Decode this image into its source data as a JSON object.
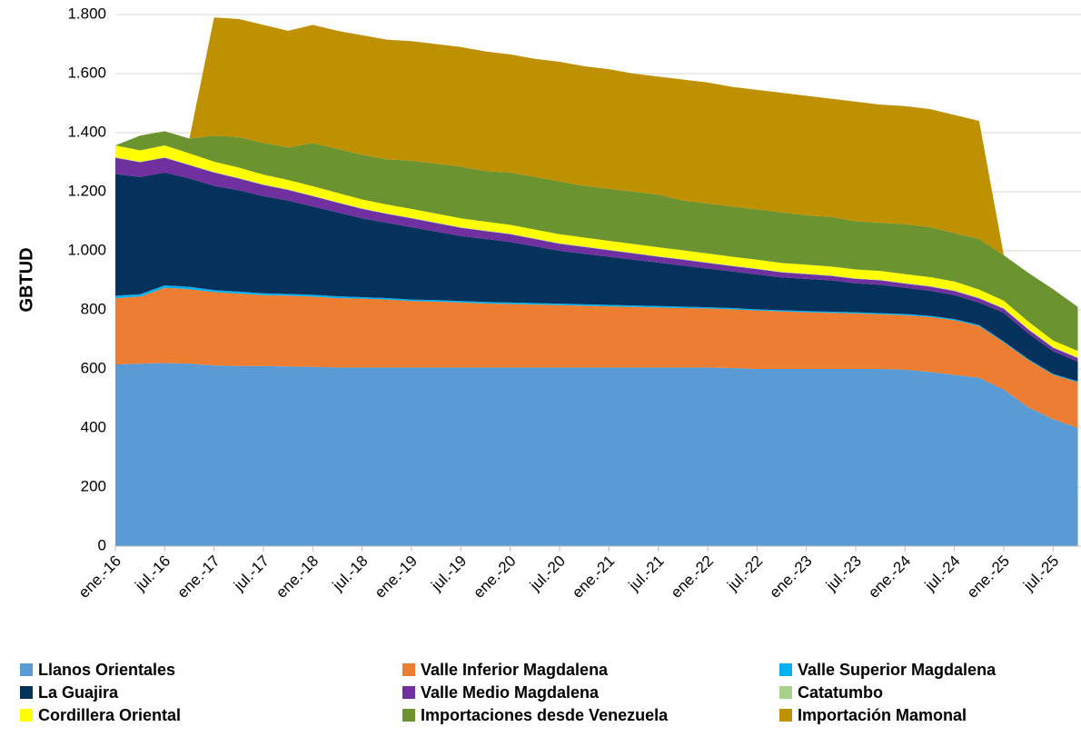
{
  "chart_data": {
    "type": "stacked_area",
    "y_label": "GBTUD",
    "categories": [
      "ene.-16",
      null,
      "jul.-16",
      null,
      "ene.-17",
      null,
      "jul.-17",
      null,
      "ene.-18",
      null,
      "jul.-18",
      null,
      "ene.-19",
      null,
      "jul.-19",
      null,
      "ene.-20",
      null,
      "jul.-20",
      null,
      "ene.-21",
      null,
      "jul.-21",
      null,
      "ene.-22",
      null,
      "jul.-22",
      null,
      "ene.-23",
      null,
      "jul.-23",
      null,
      "ene.-24",
      null,
      "jul.-24",
      null,
      "ene.-25",
      null,
      "jul.-25",
      null
    ],
    "ylim": [
      0,
      1800
    ],
    "yticks": [
      0,
      200,
      400,
      600,
      800,
      {
        "value": 1000,
        "label": "1.000"
      },
      {
        "value": 1200,
        "label": "1.200"
      },
      {
        "value": 1400,
        "label": "1.400"
      },
      {
        "value": 1600,
        "label": "1.600"
      },
      {
        "value": 1800,
        "label": "1.800"
      }
    ],
    "grid": true,
    "legend": "bottom",
    "series": [
      {
        "name": "Llanos Orientales",
        "color": "#5b9bd5",
        "values": [
          615,
          618,
          620,
          618,
          612,
          610,
          610,
          608,
          607,
          605,
          605,
          605,
          605,
          605,
          605,
          605,
          605,
          605,
          605,
          605,
          605,
          605,
          605,
          605,
          605,
          603,
          600,
          600,
          600,
          600,
          600,
          600,
          598,
          590,
          580,
          570,
          530,
          470,
          430,
          400
        ]
      },
      {
        "name": "Valle Inferior Magdalena",
        "color": "#ed7d31",
        "values": [
          225,
          227,
          255,
          252,
          248,
          245,
          240,
          240,
          238,
          235,
          233,
          230,
          225,
          223,
          220,
          217,
          215,
          213,
          211,
          209,
          207,
          205,
          203,
          201,
          200,
          199,
          198,
          195,
          192,
          190,
          188,
          185,
          184,
          186,
          185,
          175,
          160,
          160,
          150,
          155
        ]
      },
      {
        "name": "Valle Superior Magdalena",
        "color": "#00b0f0",
        "values": [
          8,
          8,
          8,
          8,
          7,
          7,
          6,
          6,
          6,
          6,
          5,
          5,
          5,
          5,
          5,
          5,
          5,
          5,
          5,
          5,
          5,
          5,
          5,
          5,
          4,
          4,
          4,
          4,
          4,
          4,
          4,
          4,
          4,
          4,
          4,
          4,
          3,
          3,
          3,
          3
        ]
      },
      {
        "name": "La Guajira",
        "color": "#05325c",
        "values": [
          412,
          397,
          382,
          367,
          353,
          343,
          329,
          316,
          299,
          284,
          267,
          255,
          245,
          232,
          220,
          213,
          205,
          192,
          179,
          171,
          163,
          155,
          147,
          139,
          131,
          124,
          118,
          111,
          109,
          106,
          98,
          96,
          89,
          85,
          81,
          76,
          97,
          87,
          77,
          67
        ]
      },
      {
        "name": "Valle Medio Magdalena",
        "color": "#7030a0",
        "values": [
          55,
          50,
          50,
          45,
          45,
          40,
          38,
          36,
          35,
          33,
          32,
          30,
          30,
          29,
          28,
          27,
          26,
          25,
          24,
          23,
          22,
          21,
          20,
          20,
          19,
          18,
          18,
          17,
          16,
          15,
          15,
          15,
          14,
          14,
          14,
          14,
          14,
          13,
          12,
          12
        ]
      },
      {
        "name": "Catatumbo",
        "color": "#a9d18e",
        "values": [
          2,
          2,
          2,
          2,
          2,
          2,
          2,
          2,
          2,
          2,
          2,
          2,
          2,
          2,
          2,
          2,
          2,
          2,
          2,
          2,
          2,
          2,
          2,
          2,
          2,
          2,
          2,
          2,
          2,
          2,
          2,
          2,
          2,
          2,
          2,
          2,
          2,
          2,
          2,
          2
        ]
      },
      {
        "name": "Cordillera Oriental",
        "color": "#ffff00",
        "values": [
          40,
          38,
          40,
          38,
          35,
          35,
          33,
          32,
          32,
          31,
          30,
          30,
          30,
          30,
          30,
          30,
          30,
          30,
          30,
          30,
          30,
          30,
          30,
          30,
          30,
          30,
          30,
          30,
          30,
          30,
          30,
          30,
          30,
          30,
          30,
          28,
          25,
          25,
          22,
          22
        ]
      },
      {
        "name": "Importaciones desde Venezuela",
        "color": "#6b9330",
        "values": [
          0,
          50,
          48,
          50,
          88,
          103,
          107,
          110,
          146,
          149,
          151,
          153,
          163,
          169,
          175,
          171,
          177,
          178,
          179,
          175,
          176,
          177,
          178,
          168,
          169,
          170,
          170,
          171,
          167,
          168,
          163,
          163,
          169,
          169,
          164,
          171,
          154,
          165,
          174,
          149
        ]
      },
      {
        "name": "Importación Mamonal",
        "color": "#bf9000",
        "values": [
          0,
          0,
          0,
          0,
          400,
          400,
          400,
          395,
          400,
          400,
          405,
          405,
          405,
          405,
          405,
          405,
          400,
          400,
          405,
          405,
          405,
          400,
          400,
          410,
          410,
          405,
          405,
          405,
          405,
          400,
          405,
          400,
          400,
          400,
          400,
          400,
          0,
          0,
          0,
          0
        ]
      }
    ]
  }
}
